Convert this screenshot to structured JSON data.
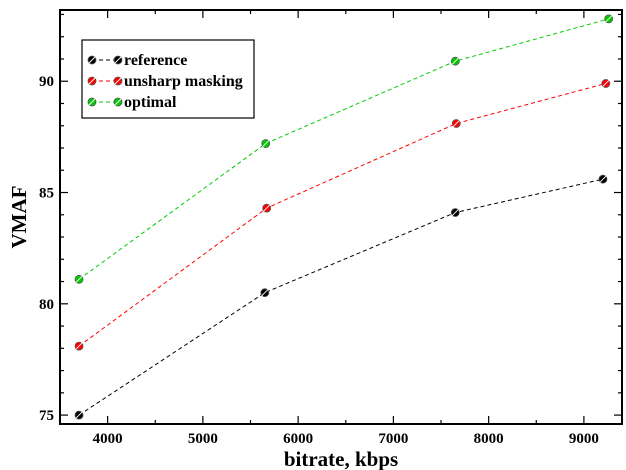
{
  "chart_data": {
    "type": "line",
    "xlabel": "bitrate, kbps",
    "ylabel": "VMAF",
    "xlim": [
      3500,
      9400
    ],
    "ylim": [
      74.6,
      93.2
    ],
    "xticks": [
      4000,
      5000,
      6000,
      7000,
      8000,
      9000
    ],
    "yticks": [
      75,
      80,
      85,
      90
    ],
    "grid": false,
    "legend_position": "top-left",
    "series": [
      {
        "name": "reference",
        "color": "#000000",
        "x": [
          3700,
          5650,
          7650,
          9200
        ],
        "y": [
          75.0,
          80.5,
          84.1,
          85.6
        ]
      },
      {
        "name": "unsharp masking",
        "color": "#ff0000",
        "x": [
          3700,
          5670,
          7660,
          9230
        ],
        "y": [
          78.1,
          84.3,
          88.1,
          89.9
        ]
      },
      {
        "name": "optimal",
        "color": "#00cc00",
        "x": [
          3700,
          5660,
          7650,
          9260
        ],
        "y": [
          81.1,
          87.2,
          90.9,
          92.8
        ]
      }
    ]
  }
}
